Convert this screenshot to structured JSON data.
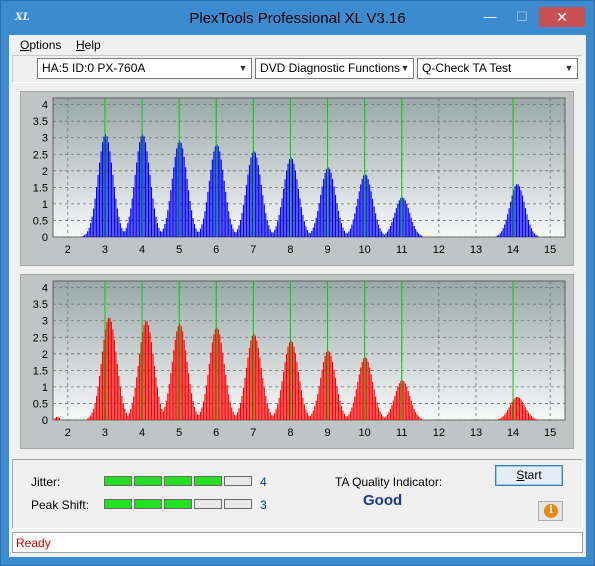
{
  "window": {
    "title": "PlexTools Professional XL V3.16",
    "app_icon_text": "XL",
    "minimize_glyph": "—",
    "maximize_glyph": "☐",
    "close_glyph": "✕"
  },
  "menu": {
    "options": "ptions",
    "options_mnemonic": "O",
    "help": "elp",
    "help_mnemonic": "H"
  },
  "toolbar": {
    "drive": "HA:5 ID:0  PX-760A",
    "function": "DVD Diagnostic Functions",
    "test": "Q-Check TA Test"
  },
  "status": {
    "jitter_label": "Jitter:",
    "jitter_value": "4",
    "jitter_level": 4,
    "peak_label": "Peak Shift:",
    "peak_value": "3",
    "peak_level": 3,
    "segments": 5,
    "ta_label": "TA Quality Indicator:",
    "ta_value": "Good",
    "start_mnemonic": "S",
    "start_rest": "tart",
    "info_glyph": "i",
    "bar_text": "Ready"
  },
  "colors": {
    "title_bar": "#3c8bd0",
    "top_series": "#0000ff",
    "bottom_series": "#ff0000",
    "marker_lines": "#00d000",
    "level_on": "#22e022"
  },
  "chart_data": [
    {
      "type": "bar",
      "series": [
        {
          "values": "land pit length histogram"
        }
      ],
      "x_ticks": [
        "2",
        "3",
        "4",
        "5",
        "6",
        "7",
        "8",
        "9",
        "10",
        "11",
        "12",
        "13",
        "14",
        "15"
      ],
      "y_ticks": [
        "0",
        "0.5",
        "1",
        "1.5",
        "2",
        "2.5",
        "3",
        "3.5",
        "4"
      ],
      "xlim": [
        1.6,
        15.4
      ],
      "ylim": [
        0,
        4.2
      ],
      "reference_lines_x": [
        3,
        4,
        5,
        6,
        7,
        8,
        9,
        10,
        11,
        14
      ],
      "peaks": [
        {
          "x": 2.6,
          "y": 0.2
        },
        {
          "x": 3.0,
          "y": 3.1
        },
        {
          "x": 4.0,
          "y": 3.1
        },
        {
          "x": 5.0,
          "y": 2.9
        },
        {
          "x": 6.0,
          "y": 2.8
        },
        {
          "x": 7.0,
          "y": 2.6
        },
        {
          "x": 8.0,
          "y": 2.4
        },
        {
          "x": 9.0,
          "y": 2.1
        },
        {
          "x": 10.0,
          "y": 1.9
        },
        {
          "x": 11.0,
          "y": 1.2
        },
        {
          "x": 14.1,
          "y": 1.6
        }
      ],
      "grid": true
    },
    {
      "type": "bar",
      "x_ticks": [
        "2",
        "3",
        "4",
        "5",
        "6",
        "7",
        "8",
        "9",
        "10",
        "11",
        "12",
        "13",
        "14",
        "15"
      ],
      "y_ticks": [
        "0",
        "0.5",
        "1",
        "1.5",
        "2",
        "2.5",
        "3",
        "3.5",
        "4"
      ],
      "xlim": [
        1.6,
        15.4
      ],
      "ylim": [
        0,
        4.2
      ],
      "reference_lines_x": [
        3,
        4,
        5,
        6,
        7,
        8,
        9,
        10,
        11,
        14
      ],
      "peaks": [
        {
          "x": 1.7,
          "y": 0.1
        },
        {
          "x": 3.1,
          "y": 3.1
        },
        {
          "x": 4.1,
          "y": 3.0
        },
        {
          "x": 5.0,
          "y": 2.9
        },
        {
          "x": 6.0,
          "y": 2.8
        },
        {
          "x": 7.0,
          "y": 2.6
        },
        {
          "x": 8.0,
          "y": 2.4
        },
        {
          "x": 9.0,
          "y": 2.1
        },
        {
          "x": 10.0,
          "y": 1.9
        },
        {
          "x": 11.0,
          "y": 1.2
        },
        {
          "x": 14.1,
          "y": 0.7
        }
      ],
      "grid": true
    }
  ]
}
